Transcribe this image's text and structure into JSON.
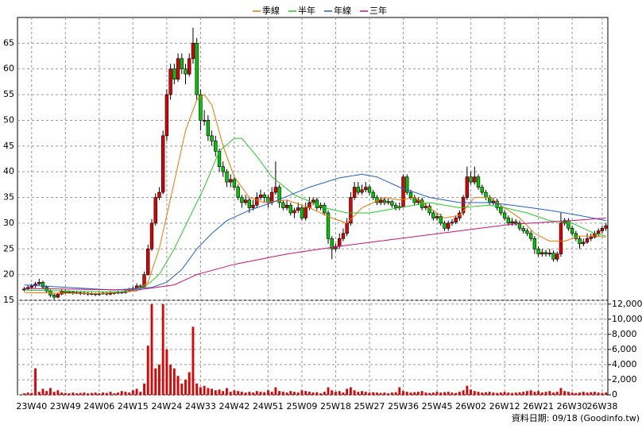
{
  "chart_data": {
    "type": "candlestick",
    "legend_position": "top",
    "grid": true,
    "up_color": "#e00000",
    "down_color": "#00c800",
    "footnote": "資料日期: 09/18 (Goodinfo.tw)",
    "categories": [
      null,
      null,
      "23W40",
      null,
      null,
      null,
      null,
      null,
      null,
      null,
      null,
      "23W49",
      null,
      null,
      null,
      null,
      null,
      null,
      null,
      null,
      "24W06",
      null,
      null,
      null,
      null,
      null,
      null,
      null,
      null,
      "24W15",
      null,
      null,
      null,
      null,
      null,
      null,
      null,
      null,
      "24W24",
      null,
      null,
      null,
      null,
      null,
      null,
      null,
      null,
      "24W33",
      null,
      null,
      null,
      null,
      null,
      null,
      null,
      null,
      "24W42",
      null,
      null,
      null,
      null,
      null,
      null,
      null,
      null,
      "24W51",
      null,
      null,
      null,
      null,
      null,
      null,
      null,
      null,
      "25W09",
      null,
      null,
      null,
      null,
      null,
      null,
      null,
      null,
      "25W18",
      null,
      null,
      null,
      null,
      null,
      null,
      null,
      null,
      "25W27",
      null,
      null,
      null,
      null,
      null,
      null,
      null,
      null,
      "25W36",
      null,
      null,
      null,
      null,
      null,
      null,
      null,
      null,
      "25W45",
      null,
      null,
      null,
      null,
      null,
      null,
      null,
      null,
      "26W02",
      null,
      null,
      null,
      null,
      null,
      null,
      null,
      null,
      "26W12",
      null,
      null,
      null,
      null,
      null,
      null,
      null,
      null,
      "26W21",
      null,
      null,
      null,
      null,
      null,
      null,
      null,
      null,
      "26W30",
      null,
      null,
      null,
      null,
      null,
      null,
      null,
      "26W38",
      null
    ],
    "ohlc": [
      [
        17,
        17.6,
        16.7,
        17.2
      ],
      [
        17.2,
        17.9,
        16.9,
        17.5
      ],
      [
        17.5,
        18.2,
        17.2,
        17.8
      ],
      [
        17.8,
        18.6,
        17.4,
        18.2
      ],
      [
        18.2,
        19.2,
        17.9,
        18.5
      ],
      [
        18.5,
        18.8,
        17.3,
        17.6
      ],
      [
        17.6,
        17.9,
        16.5,
        16.8
      ],
      [
        16.8,
        17.1,
        15.6,
        16
      ],
      [
        16,
        16.3,
        15.2,
        15.6
      ],
      [
        15.6,
        16.5,
        15.4,
        16.2
      ],
      [
        16.2,
        17.1,
        16,
        16.8
      ],
      [
        16.8,
        17,
        16.2,
        16.5
      ],
      [
        16.5,
        16.9,
        16.3,
        16.6
      ],
      [
        16.6,
        16.8,
        16.1,
        16.4
      ],
      [
        16.4,
        16.8,
        16.2,
        16.5
      ],
      [
        16.5,
        16.7,
        16,
        16.3
      ],
      [
        16.3,
        16.7,
        16.1,
        16.4
      ],
      [
        16.4,
        16.6,
        15.9,
        16.2
      ],
      [
        16.2,
        16.6,
        16,
        16.3
      ],
      [
        16.3,
        16.5,
        15.8,
        16.1
      ],
      [
        16.1,
        16.6,
        15.9,
        16.3
      ],
      [
        16.3,
        16.7,
        16.1,
        16.4
      ],
      [
        16.4,
        16.6,
        15.9,
        16.2
      ],
      [
        16.2,
        16.8,
        16,
        16.5
      ],
      [
        16.5,
        16.7,
        16.1,
        16.4
      ],
      [
        16.4,
        16.9,
        16.2,
        16.6
      ],
      [
        16.6,
        16.8,
        16.2,
        16.5
      ],
      [
        16.5,
        17.1,
        16.3,
        16.8
      ],
      [
        16.8,
        17.4,
        16.6,
        17
      ],
      [
        17,
        17.7,
        16.8,
        17.3
      ],
      [
        17.3,
        18.3,
        17.1,
        17.8
      ],
      [
        17.8,
        18.1,
        17.2,
        17.6
      ],
      [
        17.6,
        20.6,
        17.4,
        20
      ],
      [
        20,
        25.8,
        19.8,
        25
      ],
      [
        25,
        30.8,
        24.6,
        30
      ],
      [
        30,
        35.8,
        29.5,
        35
      ],
      [
        35,
        37,
        34.5,
        36
      ],
      [
        36,
        48,
        35.6,
        47
      ],
      [
        47,
        56,
        46,
        55
      ],
      [
        55,
        61,
        54,
        60
      ],
      [
        60,
        61,
        57,
        58
      ],
      [
        58,
        63,
        57.5,
        62
      ],
      [
        62,
        63,
        59,
        60
      ],
      [
        60,
        61,
        57,
        59
      ],
      [
        59,
        63,
        58.5,
        62
      ],
      [
        62,
        68,
        61,
        65
      ],
      [
        65,
        66,
        54,
        55
      ],
      [
        55,
        56,
        48,
        50
      ],
      [
        50,
        52,
        49,
        50
      ],
      [
        50,
        51,
        46,
        47
      ],
      [
        47,
        48,
        45,
        46
      ],
      [
        46,
        47,
        43,
        44
      ],
      [
        44,
        44.5,
        40,
        41
      ],
      [
        41,
        42,
        39,
        40
      ],
      [
        40,
        40.5,
        37,
        38
      ],
      [
        38,
        39.5,
        37,
        38.5
      ],
      [
        38.5,
        39,
        36.5,
        37
      ],
      [
        37,
        37.5,
        34.5,
        35
      ],
      [
        35,
        35.5,
        33,
        34
      ],
      [
        34,
        35.5,
        33.5,
        34.5
      ],
      [
        34.5,
        35,
        32,
        33
      ],
      [
        33,
        34.5,
        32.5,
        33.5
      ],
      [
        33.5,
        36,
        33,
        35
      ],
      [
        35,
        36.5,
        34.5,
        35.5
      ],
      [
        35.5,
        36,
        34,
        35
      ],
      [
        35,
        35.5,
        33,
        34
      ],
      [
        34,
        37,
        33.5,
        36
      ],
      [
        36,
        42,
        35.5,
        37
      ],
      [
        37,
        37.5,
        33,
        34
      ],
      [
        34,
        34.5,
        32.5,
        33
      ],
      [
        33,
        34.5,
        32.5,
        33.5
      ],
      [
        33.5,
        34,
        31.5,
        32
      ],
      [
        32,
        33,
        31,
        32.5
      ],
      [
        32.5,
        34,
        32,
        33
      ],
      [
        33,
        33.5,
        30.5,
        31
      ],
      [
        31,
        34,
        30.5,
        33
      ],
      [
        33,
        35,
        32.5,
        34
      ],
      [
        34,
        35,
        33.5,
        34.5
      ],
      [
        34.5,
        35,
        32.5,
        33
      ],
      [
        33,
        34,
        32.5,
        33.5
      ],
      [
        33.5,
        34,
        31.5,
        32
      ],
      [
        32,
        32.5,
        26,
        27
      ],
      [
        27,
        27.5,
        23,
        25
      ],
      [
        25,
        26,
        24.5,
        25.5
      ],
      [
        25.5,
        28,
        25,
        27
      ],
      [
        27,
        29,
        26.5,
        28
      ],
      [
        28,
        31,
        27.5,
        30
      ],
      [
        30,
        36,
        29.5,
        35
      ],
      [
        35,
        38,
        34.5,
        37
      ],
      [
        37,
        38,
        35.5,
        36
      ],
      [
        36,
        37.5,
        35.5,
        36.5
      ],
      [
        36.5,
        38,
        36,
        37
      ],
      [
        37,
        37.5,
        35.5,
        36
      ],
      [
        36,
        36.5,
        34.5,
        35
      ],
      [
        35,
        35.5,
        33.5,
        34
      ],
      [
        34,
        35,
        33.5,
        34.5
      ],
      [
        34.5,
        35,
        33.5,
        34
      ],
      [
        34,
        34.8,
        33.6,
        34.2
      ],
      [
        34.2,
        34.5,
        33,
        33.5
      ],
      [
        33.5,
        34,
        32.5,
        33
      ],
      [
        33,
        34,
        32.5,
        33.2
      ],
      [
        33.2,
        39.5,
        33,
        39
      ],
      [
        39,
        39.5,
        35.5,
        36
      ],
      [
        36,
        36.5,
        34.5,
        35
      ],
      [
        35,
        35.5,
        33.5,
        34
      ],
      [
        34,
        35,
        33.5,
        34.5
      ],
      [
        34.5,
        35,
        32.5,
        33
      ],
      [
        33,
        34,
        32.5,
        33.3
      ],
      [
        33.3,
        33.8,
        31.5,
        32
      ],
      [
        32,
        32.5,
        30.5,
        31
      ],
      [
        31,
        32,
        30.5,
        31.3
      ],
      [
        31.3,
        31.8,
        29.5,
        30
      ],
      [
        30,
        30.5,
        28.5,
        29
      ],
      [
        29,
        30.5,
        28.5,
        30
      ],
      [
        30,
        30.8,
        29.5,
        30.2
      ],
      [
        30.2,
        31.5,
        29.8,
        31
      ],
      [
        31,
        32.5,
        30.5,
        32
      ],
      [
        32,
        35.5,
        31.5,
        35
      ],
      [
        35,
        41,
        34.5,
        39
      ],
      [
        39,
        40,
        37.5,
        38
      ],
      [
        38,
        41,
        37.5,
        39
      ],
      [
        39,
        39.5,
        36.5,
        37
      ],
      [
        37,
        37.5,
        35.5,
        36
      ],
      [
        36,
        36.5,
        34.5,
        35
      ],
      [
        35,
        35.5,
        33.5,
        34
      ],
      [
        34,
        35,
        33.5,
        34.3
      ],
      [
        34.3,
        34.8,
        32.5,
        33
      ],
      [
        33,
        33.5,
        31.5,
        32
      ],
      [
        32,
        32.5,
        30.5,
        31
      ],
      [
        31,
        31.5,
        29.5,
        30
      ],
      [
        30,
        31,
        29.5,
        30.3
      ],
      [
        30.3,
        30.8,
        29.5,
        30
      ],
      [
        30,
        30.5,
        28.5,
        29
      ],
      [
        29,
        29.5,
        28,
        28.5
      ],
      [
        28.5,
        29,
        27.5,
        28
      ],
      [
        28,
        28.5,
        26.5,
        27
      ],
      [
        27,
        27.5,
        24,
        25
      ],
      [
        25,
        25.5,
        23.5,
        24
      ],
      [
        24,
        25,
        23.5,
        24.3
      ],
      [
        24.3,
        24.8,
        23.5,
        24
      ],
      [
        24,
        25,
        23.5,
        24.2
      ],
      [
        24.2,
        24.7,
        22.5,
        23
      ],
      [
        23,
        24.5,
        22.5,
        24
      ],
      [
        24,
        32,
        23.5,
        30
      ],
      [
        30,
        31,
        29.5,
        30.5
      ],
      [
        30.5,
        31,
        28.5,
        29
      ],
      [
        29,
        29.5,
        27.5,
        28
      ],
      [
        28,
        28.5,
        26.5,
        27
      ],
      [
        27,
        27.5,
        25,
        26
      ],
      [
        26,
        27,
        25.5,
        26.3
      ],
      [
        26.3,
        28,
        26,
        27
      ],
      [
        27,
        28,
        26.5,
        27.3
      ],
      [
        27.3,
        28.5,
        27,
        28
      ],
      [
        28,
        29,
        27.5,
        28.5
      ],
      [
        28.5,
        29.5,
        28,
        29
      ],
      [
        29,
        30,
        28.5,
        29.5
      ]
    ],
    "volume": {
      "axis": "y2",
      "color": "#e00000",
      "values": [
        200,
        300,
        250,
        3500,
        400,
        800,
        500,
        900,
        400,
        600,
        300,
        250,
        200,
        300,
        200,
        250,
        300,
        200,
        250,
        300,
        200,
        300,
        250,
        400,
        200,
        300,
        500,
        400,
        300,
        600,
        800,
        400,
        1500,
        6500,
        12000,
        3500,
        4000,
        12000,
        6000,
        4000,
        3500,
        2500,
        1500,
        2000,
        3000,
        9000,
        1500,
        1000,
        1200,
        900,
        800,
        600,
        700,
        500,
        900,
        400,
        600,
        500,
        400,
        300,
        400,
        300,
        500,
        400,
        350,
        600,
        400,
        1000,
        500,
        400,
        300,
        500,
        400,
        300,
        600,
        500,
        400,
        300,
        350,
        200,
        400,
        1000,
        600,
        400,
        500,
        300,
        800,
        1000,
        600,
        400,
        500,
        400,
        300,
        350,
        300,
        250,
        300,
        200,
        300,
        350,
        1000,
        500,
        400,
        300,
        350,
        400,
        500,
        300,
        250,
        300,
        400,
        300,
        350,
        400,
        300,
        250,
        400,
        600,
        1200,
        700,
        500,
        400,
        300,
        350,
        400,
        300,
        250,
        300,
        400,
        300,
        250,
        300,
        350,
        400,
        500,
        600,
        400,
        500,
        300,
        400,
        500,
        300,
        400,
        900,
        500,
        400,
        300,
        250,
        300,
        400,
        300,
        350,
        400,
        300,
        250,
        300
      ]
    },
    "series": [
      {
        "name": "季線",
        "color": "#ee7700",
        "x": [
          0,
          20,
          30,
          33,
          36,
          40,
          43,
          46,
          48,
          50,
          53,
          56,
          60,
          64,
          70,
          76,
          82,
          86,
          90,
          96,
          100,
          104,
          108,
          112,
          116,
          120,
          124,
          128,
          132,
          136,
          140,
          144,
          148,
          152,
          155
        ],
        "values": [
          16.5,
          16.3,
          16.8,
          18.5,
          25,
          38,
          48,
          54,
          55,
          53,
          45,
          39,
          35,
          34,
          34.5,
          33,
          31,
          30,
          33,
          35,
          34.5,
          35,
          33,
          31,
          31.5,
          35,
          35,
          33,
          31,
          28,
          26.5,
          26.5,
          27.5,
          27.5,
          27.3
        ]
      },
      {
        "name": "半年",
        "color": "#22cc22",
        "x": [
          0,
          26,
          32,
          36,
          40,
          44,
          48,
          52,
          56,
          58,
          62,
          66,
          72,
          80,
          86,
          92,
          100,
          108,
          116,
          124,
          128,
          134,
          140,
          146,
          152,
          155
        ],
        "values": [
          17,
          16.6,
          17.5,
          20,
          25,
          31,
          37,
          44,
          46.5,
          46.5,
          43,
          39,
          35.5,
          33,
          32,
          32,
          33,
          34,
          33,
          33.5,
          33,
          32,
          30.5,
          30,
          28,
          27.5
        ]
      },
      {
        "name": "年線",
        "color": "#1f5fd0",
        "x": [
          0,
          24,
          34,
          38,
          42,
          46,
          50,
          54,
          60,
          66,
          76,
          84,
          90,
          94,
          100,
          108,
          116,
          124,
          130,
          140,
          148,
          155
        ],
        "values": [
          18,
          17,
          17.5,
          18.5,
          21,
          25,
          28,
          30.5,
          32.5,
          34,
          37,
          38.8,
          39.5,
          39,
          37,
          35,
          34,
          34,
          33.5,
          32.5,
          31.5,
          30.5
        ]
      },
      {
        "name": "三年",
        "color": "#cc1177",
        "x": [
          0,
          30,
          40,
          46,
          56,
          70,
          84,
          100,
          116,
          130,
          146,
          155
        ],
        "values": [
          17.3,
          17,
          18,
          20,
          22,
          24,
          25.5,
          27,
          28.5,
          29.8,
          30.5,
          31
        ]
      }
    ],
    "ylim": [
      15,
      70
    ],
    "yticks": [
      15,
      20,
      25,
      30,
      35,
      40,
      45,
      50,
      55,
      60,
      65
    ],
    "y2lim": [
      0,
      12500
    ],
    "y2ticks": [
      0,
      {
        "value": 2000,
        "label": "2,000"
      },
      {
        "value": 4000,
        "label": "4,000"
      },
      {
        "value": 6000,
        "label": "6,000"
      },
      {
        "value": 8000,
        "label": "8,000"
      },
      {
        "value": 10000,
        "label": "10,000"
      },
      {
        "value": 12000,
        "label": "12,000"
      }
    ]
  }
}
